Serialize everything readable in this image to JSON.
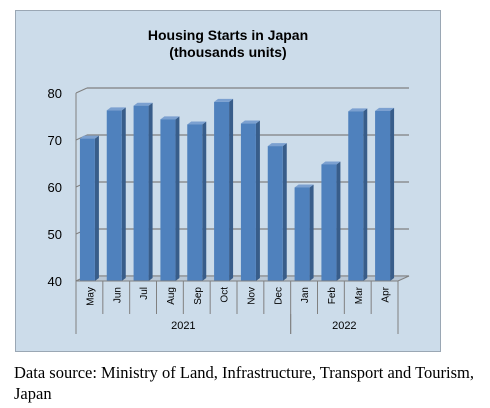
{
  "chart_data": {
    "type": "bar",
    "title_lines": [
      "Housing Starts in Japan",
      "(thousands units)"
    ],
    "categories": [
      "May",
      "Jun",
      "Jul",
      "Aug",
      "Sep",
      "Oct",
      "Nov",
      "Dec",
      "Jan",
      "Feb",
      "Mar",
      "Apr"
    ],
    "groups": [
      {
        "label": "2021",
        "categories": [
          "May",
          "Jun",
          "Jul",
          "Aug",
          "Sep",
          "Oct",
          "Nov",
          "Dec"
        ]
      },
      {
        "label": "2022",
        "categories": [
          "Jan",
          "Feb",
          "Mar",
          "Apr"
        ]
      }
    ],
    "values": [
      70.3,
      76.3,
      77.3,
      74.4,
      73.3,
      78.1,
      73.5,
      68.7,
      59.9,
      64.8,
      76.1,
      76.2
    ],
    "yticks": [
      40,
      50,
      60,
      70,
      80
    ],
    "ylim": [
      40,
      80
    ],
    "grid": true,
    "legend": "none",
    "colors": {
      "bar_face": "#4f81bd",
      "bar_side": "#385d8a",
      "bar_top": "#7ba0d0",
      "background": "#ccdcea",
      "gridline": "#808080"
    }
  },
  "source": "Data source: Ministry of Land, Infrastructure, Transport and Tourism, Japan"
}
